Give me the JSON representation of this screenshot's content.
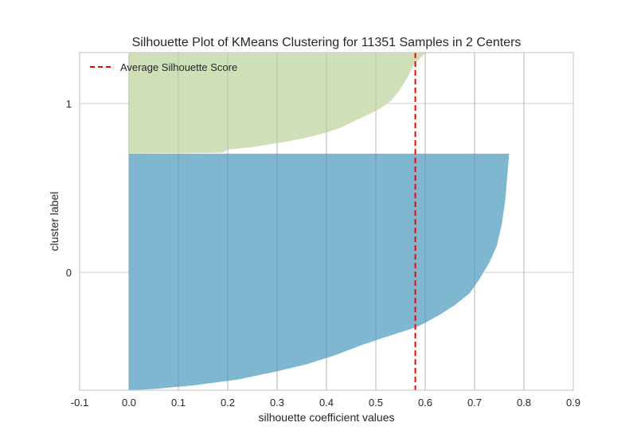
{
  "chart_data": {
    "type": "area",
    "title": "Silhouette Plot of KMeans Clustering for 11351 Samples in 2 Centers",
    "xlabel": "silhouette coefficient values",
    "ylabel": "cluster label",
    "xlim": [
      -0.1,
      0.9
    ],
    "x_ticks": [
      "-0.1",
      "0.0",
      "0.1",
      "0.2",
      "0.3",
      "0.4",
      "0.5",
      "0.6",
      "0.7",
      "0.8",
      "0.9"
    ],
    "y_ticks": [
      "0",
      "1"
    ],
    "grid": true,
    "legend_position": "top-left",
    "average_silhouette_score": 0.58,
    "legend": {
      "average_label": "Average Silhouette Score"
    },
    "colors": {
      "cluster_0": "#7fb6d0",
      "cluster_1": "#cfe0b8",
      "average_line": "#ff0000",
      "grid": "#cccccc",
      "frame": "#cccccc"
    },
    "series": [
      {
        "label": "0",
        "points": [
          [
            0.0,
            0.0
          ],
          [
            0.05,
            0.005
          ],
          [
            0.13,
            0.02
          ],
          [
            0.22,
            0.045
          ],
          [
            0.3,
            0.08
          ],
          [
            0.36,
            0.11
          ],
          [
            0.42,
            0.15
          ],
          [
            0.47,
            0.19
          ],
          [
            0.52,
            0.225
          ],
          [
            0.55,
            0.245
          ],
          [
            0.58,
            0.265
          ],
          [
            0.6,
            0.285
          ],
          [
            0.63,
            0.32
          ],
          [
            0.66,
            0.36
          ],
          [
            0.69,
            0.41
          ],
          [
            0.71,
            0.47
          ],
          [
            0.73,
            0.54
          ],
          [
            0.745,
            0.61
          ],
          [
            0.755,
            0.7
          ],
          [
            0.762,
            0.8
          ],
          [
            0.766,
            0.9
          ],
          [
            0.77,
            1.0
          ]
        ]
      },
      {
        "label": "1",
        "points": [
          [
            -0.035,
            0.0
          ],
          [
            0.0,
            0.002
          ],
          [
            0.1,
            0.005
          ],
          [
            0.19,
            0.01
          ],
          [
            0.2,
            0.04
          ],
          [
            0.25,
            0.065
          ],
          [
            0.32,
            0.12
          ],
          [
            0.37,
            0.17
          ],
          [
            0.4,
            0.21
          ],
          [
            0.43,
            0.26
          ],
          [
            0.46,
            0.33
          ],
          [
            0.49,
            0.4
          ],
          [
            0.51,
            0.45
          ],
          [
            0.53,
            0.52
          ],
          [
            0.55,
            0.64
          ],
          [
            0.565,
            0.76
          ],
          [
            0.575,
            0.86
          ],
          [
            0.585,
            0.92
          ],
          [
            0.597,
            0.98
          ],
          [
            0.61,
            1.0
          ]
        ]
      }
    ]
  }
}
